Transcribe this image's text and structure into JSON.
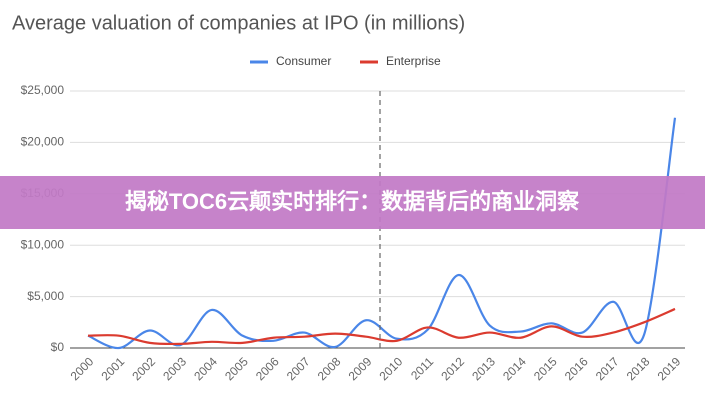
{
  "chart_data": {
    "type": "line",
    "title": "Average valuation of companies at IPO (in millions)",
    "categories": [
      "2000",
      "2001",
      "2002",
      "2003",
      "2004",
      "2005",
      "2006",
      "2007",
      "2008",
      "2009",
      "2010",
      "2011",
      "2012",
      "2013",
      "2014",
      "2015",
      "2016",
      "2017",
      "2018",
      "2019"
    ],
    "series": [
      {
        "name": "Consumer",
        "color": "#4a86e8",
        "values": [
          1200,
          0,
          1700,
          300,
          3700,
          1200,
          700,
          1500,
          100,
          2700,
          900,
          1800,
          7100,
          2200,
          1600,
          2400,
          1500,
          4500,
          1300,
          22400
        ]
      },
      {
        "name": "Enterprise",
        "color": "#db3b2f",
        "values": [
          1200,
          1200,
          500,
          400,
          600,
          500,
          1000,
          1100,
          1400,
          1100,
          700,
          2000,
          1000,
          1500,
          1000,
          2100,
          1100,
          1500,
          2500,
          3800
        ]
      }
    ],
    "ylim": [
      0,
      25000
    ],
    "yticks": [
      {
        "value": 0,
        "label": "$0"
      },
      {
        "value": 5000,
        "label": "$5,000"
      },
      {
        "value": 10000,
        "label": "$10,000"
      },
      {
        "value": 15000,
        "label": "$15,000"
      },
      {
        "value": 20000,
        "label": "$20,000"
      },
      {
        "value": 25000,
        "label": "$25,000"
      }
    ],
    "grid": true,
    "legend": "top"
  },
  "banner": {
    "text": "揭秘TOC6云颠实时排行：数据背后的商业洞察"
  }
}
